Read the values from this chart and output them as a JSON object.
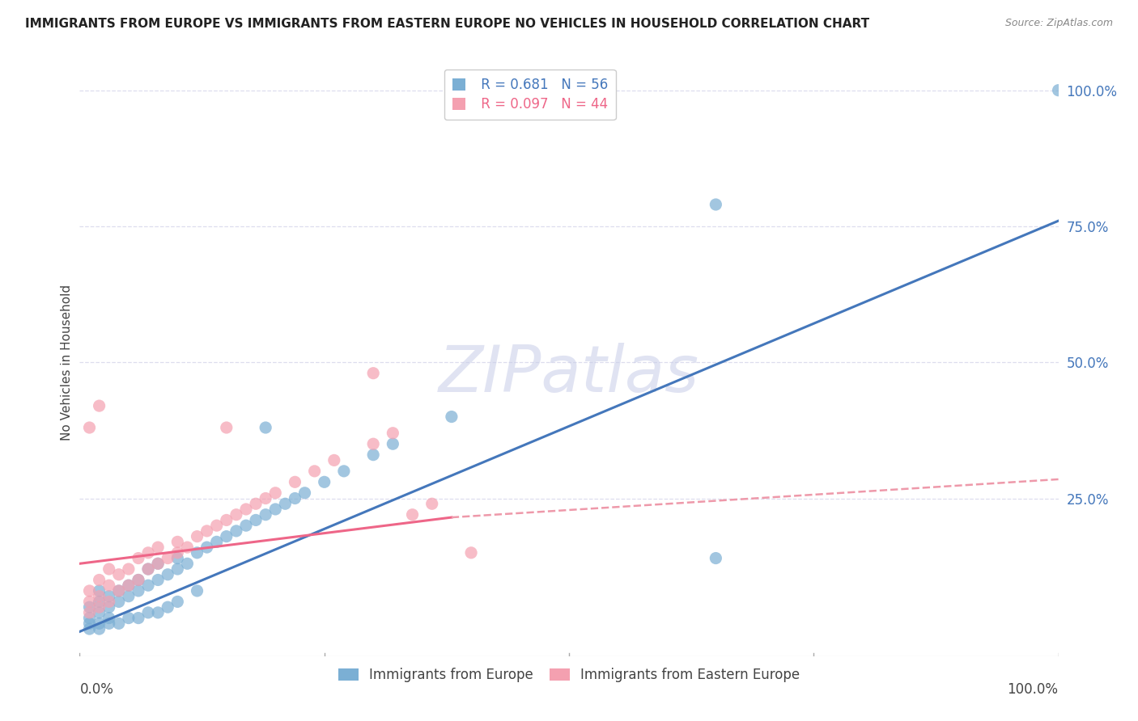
{
  "title": "IMMIGRANTS FROM EUROPE VS IMMIGRANTS FROM EASTERN EUROPE NO VEHICLES IN HOUSEHOLD CORRELATION CHART",
  "source": "Source: ZipAtlas.com",
  "xlabel_bottom_left": "0.0%",
  "xlabel_bottom_right": "100.0%",
  "ylabel_left": "No Vehicles in Household",
  "y_tick_labels": [
    "25.0%",
    "50.0%",
    "75.0%",
    "100.0%"
  ],
  "y_tick_values": [
    0.25,
    0.5,
    0.75,
    1.0
  ],
  "xlim": [
    0.0,
    1.0
  ],
  "ylim": [
    -0.04,
    1.04
  ],
  "legend_blue_r": "R = 0.681",
  "legend_blue_n": "N = 56",
  "legend_pink_r": "R = 0.097",
  "legend_pink_n": "N = 44",
  "blue_color": "#7BAFD4",
  "pink_color": "#F4A0B0",
  "blue_line_color": "#4477BB",
  "pink_line_color": "#EE6688",
  "pink_dashed_color": "#EE99AA",
  "watermark": "ZIPatlas",
  "background_color": "#FFFFFF",
  "grid_color": "#DDDDEE",
  "blue_line_x": [
    0.0,
    1.0
  ],
  "blue_line_y": [
    0.005,
    0.76
  ],
  "pink_solid_line_x": [
    0.0,
    0.38
  ],
  "pink_solid_line_y": [
    0.13,
    0.215
  ],
  "pink_dashed_line_x": [
    0.38,
    1.0
  ],
  "pink_dashed_line_y": [
    0.215,
    0.285
  ],
  "blue_scatter_x": [
    0.01,
    0.01,
    0.01,
    0.02,
    0.02,
    0.02,
    0.02,
    0.03,
    0.03,
    0.03,
    0.04,
    0.04,
    0.05,
    0.05,
    0.06,
    0.06,
    0.07,
    0.07,
    0.08,
    0.08,
    0.09,
    0.1,
    0.1,
    0.11,
    0.12,
    0.13,
    0.14,
    0.15,
    0.16,
    0.17,
    0.18,
    0.19,
    0.2,
    0.21,
    0.22,
    0.23,
    0.25,
    0.27,
    0.3,
    0.32,
    0.01,
    0.02,
    0.03,
    0.04,
    0.05,
    0.06,
    0.07,
    0.08,
    0.09,
    0.1,
    0.12,
    0.19,
    0.65,
    0.65,
    1.0,
    0.38
  ],
  "blue_scatter_y": [
    0.02,
    0.03,
    0.05,
    0.02,
    0.04,
    0.06,
    0.08,
    0.03,
    0.05,
    0.07,
    0.06,
    0.08,
    0.07,
    0.09,
    0.08,
    0.1,
    0.09,
    0.12,
    0.1,
    0.13,
    0.11,
    0.12,
    0.14,
    0.13,
    0.15,
    0.16,
    0.17,
    0.18,
    0.19,
    0.2,
    0.21,
    0.22,
    0.23,
    0.24,
    0.25,
    0.26,
    0.28,
    0.3,
    0.33,
    0.35,
    0.01,
    0.01,
    0.02,
    0.02,
    0.03,
    0.03,
    0.04,
    0.04,
    0.05,
    0.06,
    0.08,
    0.38,
    0.79,
    0.14,
    1.0,
    0.4
  ],
  "pink_scatter_x": [
    0.01,
    0.01,
    0.01,
    0.02,
    0.02,
    0.02,
    0.03,
    0.03,
    0.03,
    0.04,
    0.04,
    0.05,
    0.05,
    0.06,
    0.06,
    0.07,
    0.07,
    0.08,
    0.08,
    0.09,
    0.1,
    0.1,
    0.11,
    0.12,
    0.13,
    0.14,
    0.15,
    0.16,
    0.17,
    0.18,
    0.19,
    0.2,
    0.22,
    0.24,
    0.26,
    0.3,
    0.32,
    0.34,
    0.36,
    0.4,
    0.01,
    0.02,
    0.3,
    0.15
  ],
  "pink_scatter_y": [
    0.04,
    0.06,
    0.08,
    0.05,
    0.07,
    0.1,
    0.06,
    0.09,
    0.12,
    0.08,
    0.11,
    0.09,
    0.12,
    0.1,
    0.14,
    0.12,
    0.15,
    0.13,
    0.16,
    0.14,
    0.15,
    0.17,
    0.16,
    0.18,
    0.19,
    0.2,
    0.21,
    0.22,
    0.23,
    0.24,
    0.25,
    0.26,
    0.28,
    0.3,
    0.32,
    0.35,
    0.37,
    0.22,
    0.24,
    0.15,
    0.38,
    0.42,
    0.48,
    0.38
  ],
  "bottom_legend_items": [
    "Immigrants from Europe",
    "Immigrants from Eastern Europe"
  ]
}
